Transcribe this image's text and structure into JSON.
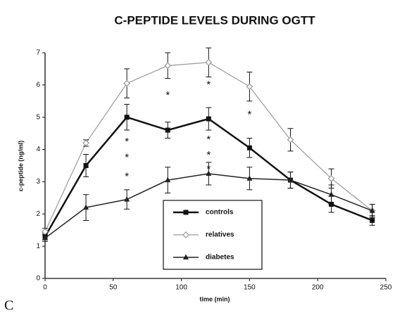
{
  "chart_data": {
    "type": "line",
    "title": "C-PEPTIDE LEVELS DURING OGTT",
    "panel_label": "C",
    "x_label": "time (min)",
    "y_label": "c-peptide (ng/ml)",
    "x": [
      0,
      30,
      60,
      90,
      120,
      150,
      180,
      210,
      240
    ],
    "series": [
      {
        "name": "controls",
        "color": "#111111",
        "marker": "square",
        "line_width": 2.5,
        "values": [
          1.3,
          3.5,
          5.0,
          4.6,
          4.95,
          4.05,
          3.05,
          2.3,
          1.8
        ],
        "errors": [
          0.1,
          0.35,
          0.4,
          0.25,
          0.35,
          0.3,
          0.25,
          0.25,
          0.15
        ]
      },
      {
        "name": "relatives",
        "color": "#999999",
        "marker": "diamond",
        "line_width": 1.2,
        "values": [
          1.45,
          4.2,
          6.05,
          6.6,
          6.7,
          5.95,
          4.3,
          3.1,
          2.1
        ],
        "errors": [
          0.1,
          0.1,
          0.45,
          0.4,
          0.45,
          0.45,
          0.35,
          0.3,
          0.2
        ]
      },
      {
        "name": "diabetes",
        "color": "#222222",
        "marker": "triangle",
        "line_width": 1.5,
        "values": [
          1.25,
          2.2,
          2.45,
          3.05,
          3.25,
          3.1,
          3.05,
          2.6,
          2.1
        ],
        "errors": [
          0.1,
          0.4,
          0.3,
          0.4,
          0.35,
          0.35,
          0.25,
          0.3,
          0.2
        ]
      }
    ],
    "annotations": [
      {
        "text": "*",
        "x": 60,
        "y": 4.3
      },
      {
        "text": "*",
        "x": 60,
        "y": 3.8
      },
      {
        "text": "*",
        "x": 60,
        "y": 3.22
      },
      {
        "text": "*",
        "x": 90,
        "y": 5.73
      },
      {
        "text": "*",
        "x": 120,
        "y": 6.06
      },
      {
        "text": "*",
        "x": 120,
        "y": 4.36
      },
      {
        "text": "*",
        "x": 120,
        "y": 3.88
      },
      {
        "text": "*",
        "x": 120,
        "y": 3.44
      },
      {
        "text": "*",
        "x": 150,
        "y": 5.14
      }
    ],
    "xlim": [
      0,
      250
    ],
    "xticks": [
      0,
      50,
      100,
      150,
      200,
      250
    ],
    "ylim": [
      0,
      7
    ],
    "yticks": [
      0,
      1,
      2,
      3,
      4,
      5,
      6,
      7
    ],
    "grid": false
  }
}
